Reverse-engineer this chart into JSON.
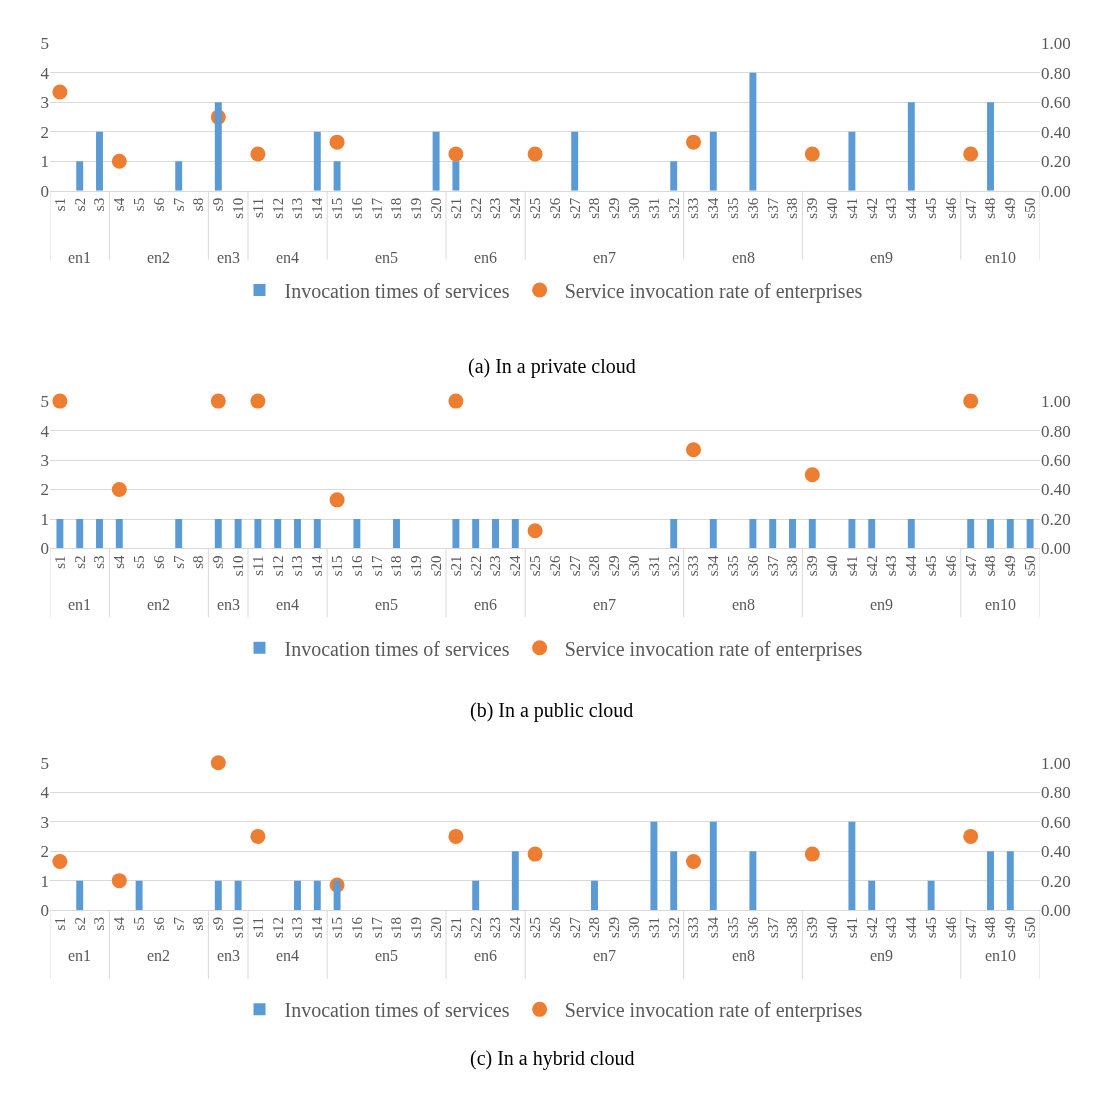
{
  "chart_data": [
    {
      "type": "bar",
      "title": "(a) In a private cloud",
      "categories": [
        "s1",
        "s2",
        "s3",
        "s4",
        "s5",
        "s6",
        "s7",
        "s8",
        "s9",
        "s10",
        "s11",
        "s12",
        "s13",
        "s14",
        "s15",
        "s16",
        "s17",
        "s18",
        "s19",
        "s20",
        "s21",
        "s22",
        "s23",
        "s24",
        "s25",
        "s26",
        "s27",
        "s28",
        "s29",
        "s30",
        "s31",
        "s32",
        "s33",
        "s34",
        "s35",
        "s36",
        "s37",
        "s38",
        "s39",
        "s40",
        "s41",
        "s42",
        "s43",
        "s44",
        "s45",
        "s46",
        "s47",
        "s48",
        "s49",
        "s50"
      ],
      "series": [
        {
          "name": "Invocation times of services",
          "color": "#5b9bd5",
          "values": [
            0,
            1,
            2,
            0,
            0,
            0,
            1,
            0,
            3,
            0,
            0,
            0,
            0,
            2,
            1,
            0,
            0,
            0,
            0,
            2,
            1,
            0,
            0,
            0,
            0,
            0,
            2,
            0,
            0,
            0,
            0,
            1,
            0,
            2,
            0,
            4,
            0,
            0,
            0,
            0,
            2,
            0,
            0,
            3,
            0,
            0,
            0,
            3,
            0,
            0
          ]
        },
        {
          "name": "Service invocation rate of enterprises",
          "type": "scatter",
          "axis": "y2",
          "color": "#ed7d31",
          "values": [
            0.67,
            null,
            null,
            0.2,
            null,
            null,
            null,
            null,
            0.5,
            null,
            0.25,
            null,
            null,
            null,
            0.33,
            null,
            null,
            null,
            null,
            null,
            0.25,
            null,
            null,
            null,
            0.25,
            null,
            null,
            null,
            null,
            null,
            null,
            null,
            0.33,
            null,
            null,
            null,
            null,
            null,
            0.25,
            null,
            null,
            null,
            null,
            null,
            null,
            null,
            0.25,
            null,
            null,
            null
          ]
        }
      ],
      "annotations": [
        "en1",
        "en2",
        "en3",
        "en4",
        "en5",
        "en6",
        "en7",
        "en8",
        "en9",
        "en10"
      ],
      "ylim": [
        0,
        5
      ],
      "yticks": [
        0,
        1,
        2,
        3,
        4,
        5
      ],
      "y2lim": [
        0,
        1
      ],
      "y2ticks": [
        {
          "value": 0,
          "label": "0.00"
        },
        {
          "value": 0.2,
          "label": "0.20"
        },
        {
          "value": 0.4,
          "label": "0.40"
        },
        {
          "value": 0.6,
          "label": "0.60"
        },
        {
          "value": 0.8,
          "label": "0.80"
        },
        {
          "value": 1,
          "label": "1.00"
        }
      ],
      "grid": "y",
      "legend": "bottom",
      "marker": "circle"
    },
    {
      "type": "bar",
      "title": "(b) In a public cloud",
      "categories": [
        "s1",
        "s2",
        "s3",
        "s4",
        "s5",
        "s6",
        "s7",
        "s8",
        "s9",
        "s10",
        "s11",
        "s12",
        "s13",
        "s14",
        "s15",
        "s16",
        "s17",
        "s18",
        "s19",
        "s20",
        "s21",
        "s22",
        "s23",
        "s24",
        "s25",
        "s26",
        "s27",
        "s28",
        "s29",
        "s30",
        "s31",
        "s32",
        "s33",
        "s34",
        "s35",
        "s36",
        "s37",
        "s38",
        "s39",
        "s40",
        "s41",
        "s42",
        "s43",
        "s44",
        "s45",
        "s46",
        "s47",
        "s48",
        "s49",
        "s50"
      ],
      "series": [
        {
          "name": "Invocation times of services",
          "color": "#5b9bd5",
          "values": [
            1,
            1,
            1,
            1,
            0,
            0,
            1,
            0,
            1,
            1,
            1,
            1,
            1,
            1,
            0,
            1,
            0,
            1,
            0,
            0,
            1,
            1,
            1,
            1,
            0,
            0,
            0,
            0,
            0,
            0,
            0,
            1,
            0,
            1,
            0,
            1,
            1,
            1,
            1,
            0,
            1,
            1,
            0,
            1,
            0,
            0,
            1,
            1,
            1,
            1
          ]
        },
        {
          "name": "Service invocation rate of enterprises",
          "type": "scatter",
          "axis": "y2",
          "color": "#ed7d31",
          "values": [
            1.0,
            null,
            null,
            0.4,
            null,
            null,
            null,
            null,
            1.0,
            null,
            1.0,
            null,
            null,
            null,
            0.33,
            null,
            null,
            null,
            null,
            null,
            1.0,
            null,
            null,
            null,
            0.12,
            null,
            null,
            null,
            null,
            null,
            null,
            null,
            0.67,
            null,
            null,
            null,
            null,
            null,
            0.5,
            null,
            null,
            null,
            null,
            null,
            null,
            null,
            1.0,
            null,
            null,
            null
          ]
        }
      ],
      "annotations": [
        "en1",
        "en2",
        "en3",
        "en4",
        "en5",
        "en6",
        "en7",
        "en8",
        "en9",
        "en10"
      ],
      "ylim": [
        0,
        5
      ],
      "yticks": [
        0,
        1,
        2,
        3,
        4,
        5
      ],
      "y2lim": [
        0,
        1
      ],
      "y2ticks": [
        {
          "value": 0,
          "label": "0.00"
        },
        {
          "value": 0.2,
          "label": "0.20"
        },
        {
          "value": 0.4,
          "label": "0.40"
        },
        {
          "value": 0.6,
          "label": "0.60"
        },
        {
          "value": 0.8,
          "label": "0.80"
        },
        {
          "value": 1,
          "label": "1.00"
        }
      ],
      "grid": "y",
      "legend": "bottom",
      "marker": "circle"
    },
    {
      "type": "bar",
      "title": "(c) In a hybrid cloud",
      "categories": [
        "s1",
        "s2",
        "s3",
        "s4",
        "s5",
        "s6",
        "s7",
        "s8",
        "s9",
        "s10",
        "s11",
        "s12",
        "s13",
        "s14",
        "s15",
        "s16",
        "s17",
        "s18",
        "s19",
        "s20",
        "s21",
        "s22",
        "s23",
        "s24",
        "s25",
        "s26",
        "s27",
        "s28",
        "s29",
        "s30",
        "s31",
        "s32",
        "s33",
        "s34",
        "s35",
        "s36",
        "s37",
        "s38",
        "s39",
        "s40",
        "s41",
        "s42",
        "s43",
        "s44",
        "s45",
        "s46",
        "s47",
        "s48",
        "s49",
        "s50"
      ],
      "series": [
        {
          "name": "Invocation times of services",
          "color": "#5b9bd5",
          "values": [
            0,
            1,
            0,
            0,
            1,
            0,
            0,
            0,
            1,
            1,
            0,
            0,
            1,
            1,
            1,
            0,
            0,
            0,
            0,
            0,
            0,
            1,
            0,
            2,
            0,
            0,
            0,
            1,
            0,
            0,
            3,
            2,
            0,
            3,
            0,
            2,
            0,
            0,
            0,
            0,
            3,
            1,
            0,
            0,
            1,
            0,
            0,
            2,
            2,
            0
          ]
        },
        {
          "name": "Service invocation rate of enterprises",
          "type": "scatter",
          "axis": "y2",
          "color": "#ed7d31",
          "values": [
            0.33,
            null,
            null,
            0.2,
            null,
            null,
            null,
            null,
            1.0,
            null,
            0.5,
            null,
            null,
            null,
            0.17,
            null,
            null,
            null,
            null,
            null,
            0.5,
            null,
            null,
            null,
            0.38,
            null,
            null,
            null,
            null,
            null,
            null,
            null,
            0.33,
            null,
            null,
            null,
            null,
            null,
            0.38,
            null,
            null,
            null,
            null,
            null,
            null,
            null,
            0.5,
            null,
            null,
            null
          ]
        }
      ],
      "annotations": [
        "en1",
        "en2",
        "en3",
        "en4",
        "en5",
        "en6",
        "en7",
        "en8",
        "en9",
        "en10"
      ],
      "ylim": [
        0,
        5
      ],
      "yticks": [
        0,
        1,
        2,
        3,
        4,
        5
      ],
      "y2lim": [
        0,
        1
      ],
      "y2ticks": [
        {
          "value": 0,
          "label": "0.00"
        },
        {
          "value": 0.2,
          "label": "0.20"
        },
        {
          "value": 0.4,
          "label": "0.40"
        },
        {
          "value": 0.6,
          "label": "0.60"
        },
        {
          "value": 0.8,
          "label": "0.80"
        },
        {
          "value": 1,
          "label": "1.00"
        }
      ],
      "grid": "y",
      "legend": "bottom",
      "marker": "circle"
    }
  ]
}
